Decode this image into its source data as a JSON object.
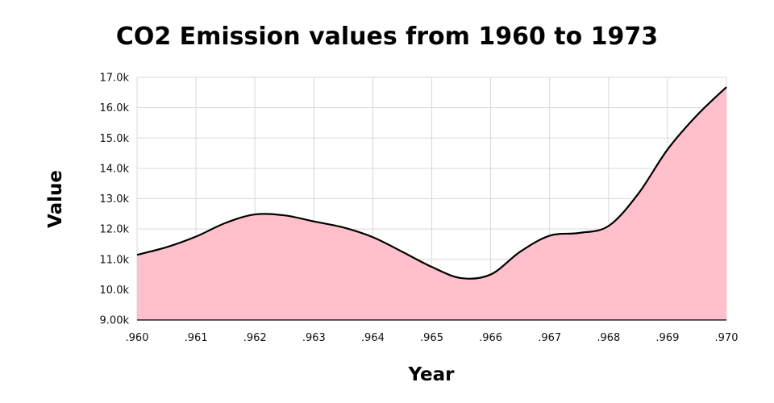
{
  "chart_data": {
    "type": "area",
    "title": "CO2 Emission values from 1960 to 1973",
    "xlabel": "Year",
    "ylabel": "Value",
    "x_tick_labels": [
      ".960",
      ".961",
      ".962",
      ".963",
      ".964",
      ".965",
      ".966",
      ".967",
      ".968",
      ".969",
      ".970"
    ],
    "y_tick_labels": [
      "9.00k",
      "10.0k",
      "11.0k",
      "12.0k",
      "13.0k",
      "14.0k",
      "15.0k",
      "16.0k",
      "17.0k"
    ],
    "ylim": [
      9000,
      17000
    ],
    "x_index_range": [
      0,
      10
    ],
    "grid": true,
    "series": [
      {
        "name": "CO2 Emission",
        "fill": "#ffc0cb",
        "line": "#000000",
        "points": [
          {
            "x": 0.0,
            "y": 11150
          },
          {
            "x": 0.5,
            "y": 11400
          },
          {
            "x": 1.0,
            "y": 11750
          },
          {
            "x": 1.5,
            "y": 12200
          },
          {
            "x": 2.0,
            "y": 12480
          },
          {
            "x": 2.5,
            "y": 12450
          },
          {
            "x": 3.0,
            "y": 12250
          },
          {
            "x": 3.5,
            "y": 12050
          },
          {
            "x": 4.0,
            "y": 11730
          },
          {
            "x": 4.5,
            "y": 11250
          },
          {
            "x": 5.0,
            "y": 10750
          },
          {
            "x": 5.5,
            "y": 10380
          },
          {
            "x": 6.0,
            "y": 10500
          },
          {
            "x": 6.5,
            "y": 11250
          },
          {
            "x": 7.0,
            "y": 11780
          },
          {
            "x": 7.5,
            "y": 11870
          },
          {
            "x": 8.0,
            "y": 12100
          },
          {
            "x": 8.5,
            "y": 13150
          },
          {
            "x": 9.0,
            "y": 14620
          },
          {
            "x": 9.5,
            "y": 15750
          },
          {
            "x": 10.0,
            "y": 16680
          }
        ]
      }
    ]
  }
}
